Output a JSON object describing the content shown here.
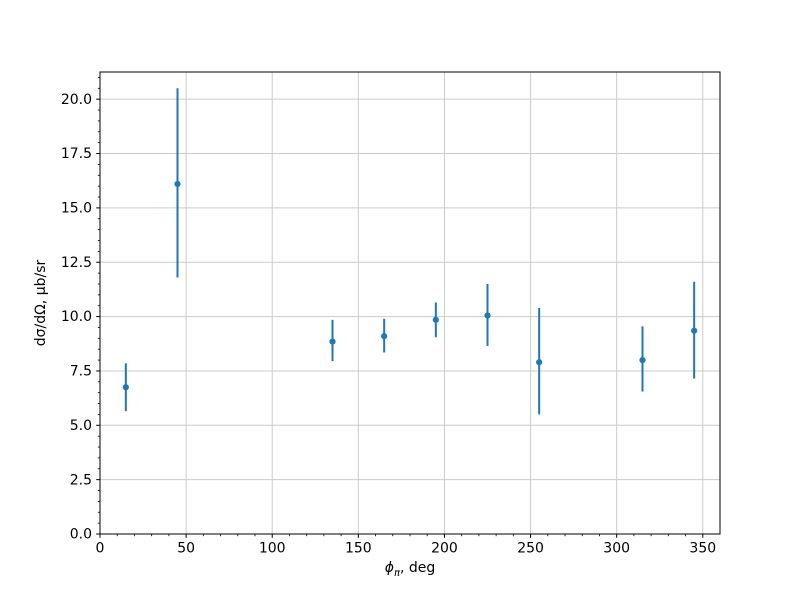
{
  "figure": {
    "background": "#ffffff"
  },
  "chart_data": {
    "type": "scatter",
    "title": "",
    "xlabel": {
      "symbol": "ϕ",
      "subscript": "π",
      "suffix": ", deg"
    },
    "ylabel": "dσ/dΩ, μb/sr",
    "xlim": [
      0,
      360
    ],
    "ylim": [
      0,
      21.25
    ],
    "grid": true,
    "grid_color": "#cccccc",
    "axis_color": "#000000",
    "xticks": {
      "values": [
        0,
        50,
        100,
        150,
        200,
        250,
        300,
        350
      ],
      "labels": [
        "0",
        "50",
        "100",
        "150",
        "200",
        "250",
        "300",
        "350"
      ],
      "minor_step": 10
    },
    "yticks": {
      "values": [
        0,
        2.5,
        5,
        7.5,
        10,
        12.5,
        15,
        17.5,
        20
      ],
      "labels": [
        "0.0",
        "2.5",
        "5.0",
        "7.5",
        "10.0",
        "12.5",
        "15.0",
        "17.5",
        "20.0"
      ],
      "minor_step": 0.5
    },
    "series": [
      {
        "color": "#1f77b4",
        "marker": "circle",
        "points": [
          {
            "x": 15,
            "y": 6.75,
            "err_up": 1.1,
            "err_down": 1.1
          },
          {
            "x": 45,
            "y": 16.1,
            "err_up": 4.4,
            "err_down": 4.3
          },
          {
            "x": 135,
            "y": 8.85,
            "err_up": 1.0,
            "err_down": 0.9
          },
          {
            "x": 165,
            "y": 9.1,
            "err_up": 0.8,
            "err_down": 0.75
          },
          {
            "x": 195,
            "y": 9.85,
            "err_up": 0.8,
            "err_down": 0.8
          },
          {
            "x": 225,
            "y": 10.05,
            "err_up": 1.45,
            "err_down": 1.4
          },
          {
            "x": 255,
            "y": 7.9,
            "err_up": 2.5,
            "err_down": 2.4
          },
          {
            "x": 315,
            "y": 8.0,
            "err_up": 1.55,
            "err_down": 1.45
          },
          {
            "x": 345,
            "y": 9.35,
            "err_up": 2.25,
            "err_down": 2.2
          }
        ]
      }
    ]
  }
}
